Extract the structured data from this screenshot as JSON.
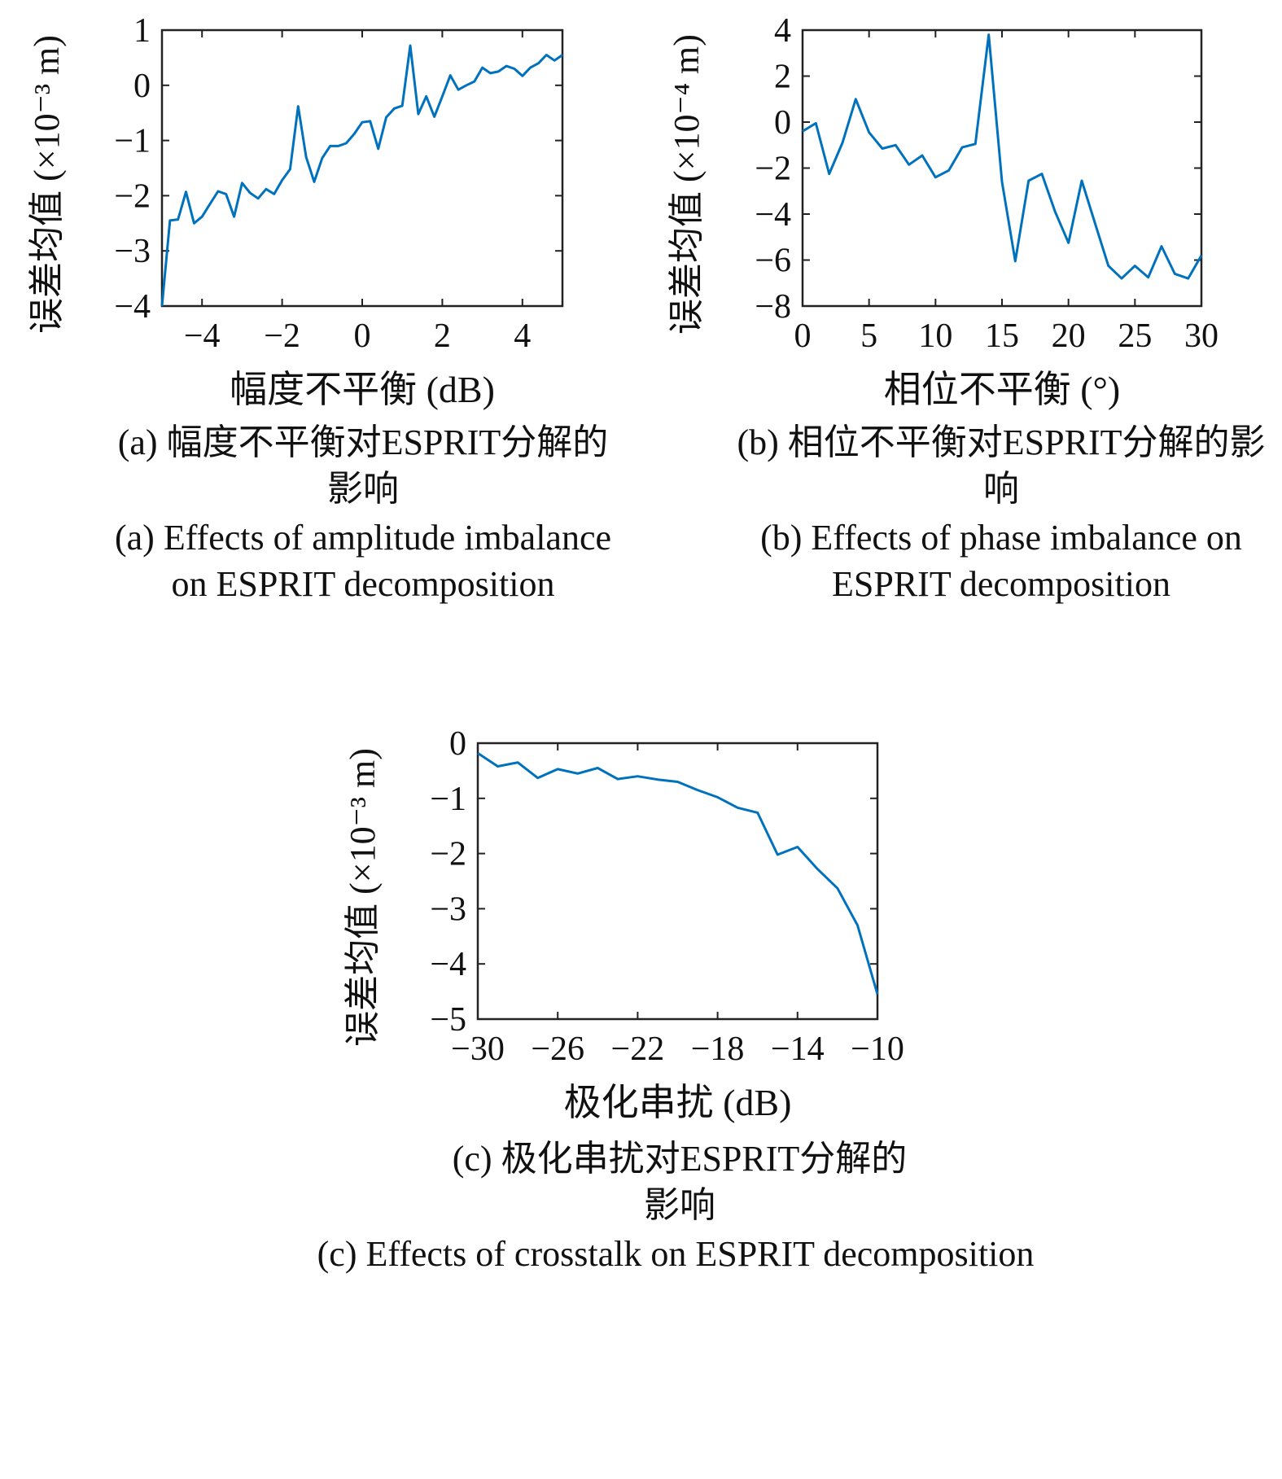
{
  "chart_data": [
    {
      "type": "line",
      "xlabel": "幅度不平衡 (dB)",
      "ylabel": "误差均值 (×10⁻³ m)",
      "caption_zh": "(a) 幅度不平衡对ESPRIT分解的影响",
      "caption_en": "(a) Effects of amplitude imbalance on ESPRIT decomposition",
      "xlim": [
        -5,
        5
      ],
      "ylim": [
        -4,
        1
      ],
      "xticks": [
        {
          "value": -4,
          "label": "−4"
        },
        {
          "value": -2,
          "label": "−2"
        },
        0,
        2,
        4
      ],
      "yticks": [
        {
          "value": -4,
          "label": "−4"
        },
        {
          "value": -3,
          "label": "−3"
        },
        {
          "value": -2,
          "label": "−2"
        },
        {
          "value": -1,
          "label": "−1"
        },
        0,
        1
      ],
      "color": "#0072bd",
      "x": [
        -5,
        -4.8,
        -4.6,
        -4.4,
        -4.2,
        -4,
        -3.8,
        -3.6,
        -3.4,
        -3.2,
        -3,
        -2.8,
        -2.6,
        -2.4,
        -2.2,
        -2,
        -1.8,
        -1.6,
        -1.4,
        -1.2,
        -1,
        -0.8,
        -0.6,
        -0.4,
        -0.2,
        0,
        0.2,
        0.4,
        0.6,
        0.8,
        1,
        1.2,
        1.4,
        1.6,
        1.8,
        2,
        2.2,
        2.4,
        2.6,
        2.8,
        3,
        3.2,
        3.4,
        3.6,
        3.8,
        4,
        4.2,
        4.4,
        4.6,
        4.8,
        5
      ],
      "values": [
        -4,
        -2.45,
        -2.43,
        -1.93,
        -2.5,
        -2.38,
        -2.15,
        -1.92,
        -1.97,
        -2.38,
        -1.77,
        -1.95,
        -2.05,
        -1.88,
        -1.97,
        -1.72,
        -1.52,
        -0.38,
        -1.3,
        -1.75,
        -1.32,
        -1.1,
        -1.1,
        -1.05,
        -0.88,
        -0.67,
        -0.65,
        -1.15,
        -0.58,
        -0.42,
        -0.37,
        0.72,
        -0.52,
        -0.2,
        -0.57,
        -0.2,
        0.18,
        -0.08,
        0,
        0.07,
        0.32,
        0.22,
        0.25,
        0.35,
        0.3,
        0.17,
        0.32,
        0.4,
        0.55,
        0.45,
        0.55
      ]
    },
    {
      "type": "line",
      "xlabel": "相位不平衡 (°)",
      "ylabel": "误差均值 (×10⁻⁴ m)",
      "caption_zh": "(b) 相位不平衡对ESPRIT分解的影响",
      "caption_en": "(b) Effects of phase imbalance on ESPRIT decomposition",
      "xlim": [
        0,
        30
      ],
      "ylim": [
        -8,
        4
      ],
      "xticks": [
        0,
        5,
        10,
        15,
        20,
        25,
        30
      ],
      "yticks": [
        {
          "value": -8,
          "label": "−8"
        },
        {
          "value": -6,
          "label": "−6"
        },
        {
          "value": -4,
          "label": "−4"
        },
        {
          "value": -2,
          "label": "−2"
        },
        0,
        2,
        4
      ],
      "color": "#0072bd",
      "x": [
        0,
        1,
        2,
        3,
        4,
        5,
        6,
        7,
        8,
        9,
        10,
        11,
        12,
        13,
        14,
        15,
        16,
        17,
        18,
        19,
        20,
        21,
        22,
        23,
        24,
        25,
        26,
        27,
        28,
        29,
        30
      ],
      "values": [
        -0.4,
        -0.05,
        -2.25,
        -0.9,
        1.0,
        -0.45,
        -1.15,
        -1.0,
        -1.85,
        -1.45,
        -2.4,
        -2.1,
        -1.1,
        -0.95,
        3.8,
        -2.6,
        -6.05,
        -2.55,
        -2.25,
        -3.9,
        -5.25,
        -2.55,
        -4.4,
        -6.25,
        -6.8,
        -6.25,
        -6.75,
        -5.4,
        -6.6,
        -6.8,
        -5.8
      ]
    },
    {
      "type": "line",
      "xlabel": "极化串扰 (dB)",
      "ylabel": "误差均值 (×10⁻³ m)",
      "caption_zh": "(c) 极化串扰对ESPRIT分解的影响",
      "caption_en": "(c) Effects of crosstalk on ESPRIT decomposition",
      "xlim": [
        -30,
        -10
      ],
      "ylim": [
        -5,
        0
      ],
      "xticks": [
        {
          "value": -30,
          "label": "−30"
        },
        {
          "value": -26,
          "label": "−26"
        },
        {
          "value": -22,
          "label": "−22"
        },
        {
          "value": -18,
          "label": "−18"
        },
        {
          "value": -14,
          "label": "−14"
        },
        {
          "value": -10,
          "label": "−10"
        }
      ],
      "yticks": [
        {
          "value": -5,
          "label": "−5"
        },
        {
          "value": -4,
          "label": "−4"
        },
        {
          "value": -3,
          "label": "−3"
        },
        {
          "value": -2,
          "label": "−2"
        },
        {
          "value": -1,
          "label": "−1"
        },
        0
      ],
      "color": "#0072bd",
      "x": [
        -30,
        -29,
        -28,
        -27,
        -26,
        -25,
        -24,
        -23,
        -22,
        -21,
        -20,
        -19,
        -18,
        -17,
        -16,
        -15,
        -14,
        -13,
        -12,
        -11,
        -10
      ],
      "values": [
        -0.18,
        -0.42,
        -0.35,
        -0.63,
        -0.47,
        -0.55,
        -0.45,
        -0.65,
        -0.6,
        -0.66,
        -0.7,
        -0.85,
        -0.98,
        -1.17,
        -1.26,
        -2.02,
        -1.88,
        -2.28,
        -2.63,
        -3.3,
        -4.55
      ]
    }
  ]
}
